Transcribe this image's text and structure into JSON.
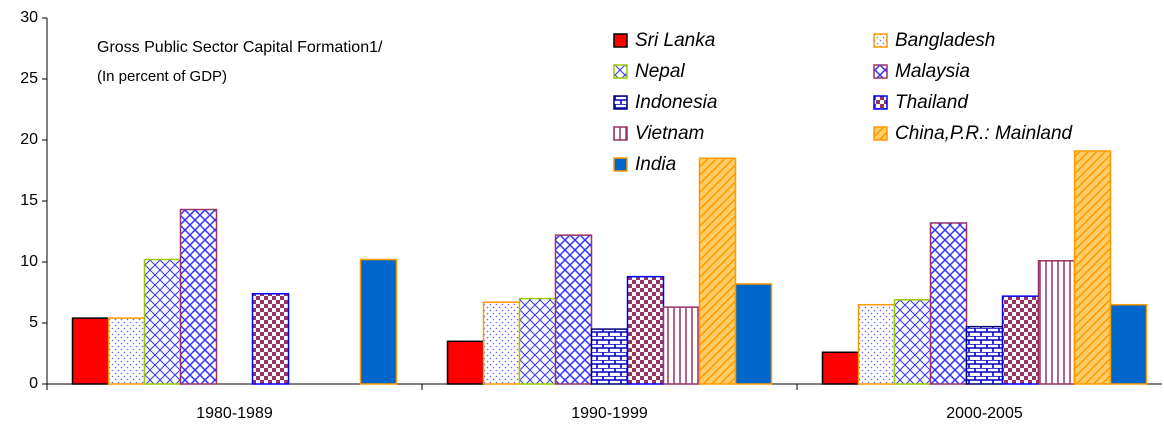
{
  "chart_data": {
    "type": "bar",
    "title": "Gross Public Sector Capital Formation1/",
    "subtitle": "(In percent of GDP)",
    "categories": [
      "1980-1989",
      "1990-1999",
      "2000-2005"
    ],
    "series": [
      {
        "name": "Sri Lanka",
        "color": "#000000",
        "values": [
          5.4,
          3.5,
          2.6
        ]
      },
      {
        "name": "Bangladesh",
        "color": "#ff9900",
        "values": [
          5.4,
          6.7,
          6.5
        ]
      },
      {
        "name": "Nepal",
        "color": "#99cc00",
        "values": [
          10.2,
          7.0,
          6.9
        ]
      },
      {
        "name": "Malaysia",
        "color": "#993366",
        "values": [
          14.3,
          12.2,
          13.2
        ]
      },
      {
        "name": "Indonesia",
        "color": "#000080",
        "values": [
          null,
          4.5,
          4.7
        ]
      },
      {
        "name": "Thailand",
        "color": "#0000ff",
        "values": [
          7.4,
          8.8,
          7.2
        ]
      },
      {
        "name": "Vietnam",
        "color": "#993366",
        "values": [
          null,
          6.3,
          10.1
        ]
      },
      {
        "name": "China,P.R.: Mainland",
        "color": "#ff9900",
        "values": [
          null,
          18.5,
          19.1
        ]
      },
      {
        "name": "India",
        "color": "#ff9900",
        "values": [
          10.2,
          8.2,
          6.5
        ]
      }
    ],
    "ylim": [
      0,
      30
    ],
    "yticks": [
      0,
      5,
      10,
      15,
      20,
      25,
      30
    ],
    "grid": false
  }
}
